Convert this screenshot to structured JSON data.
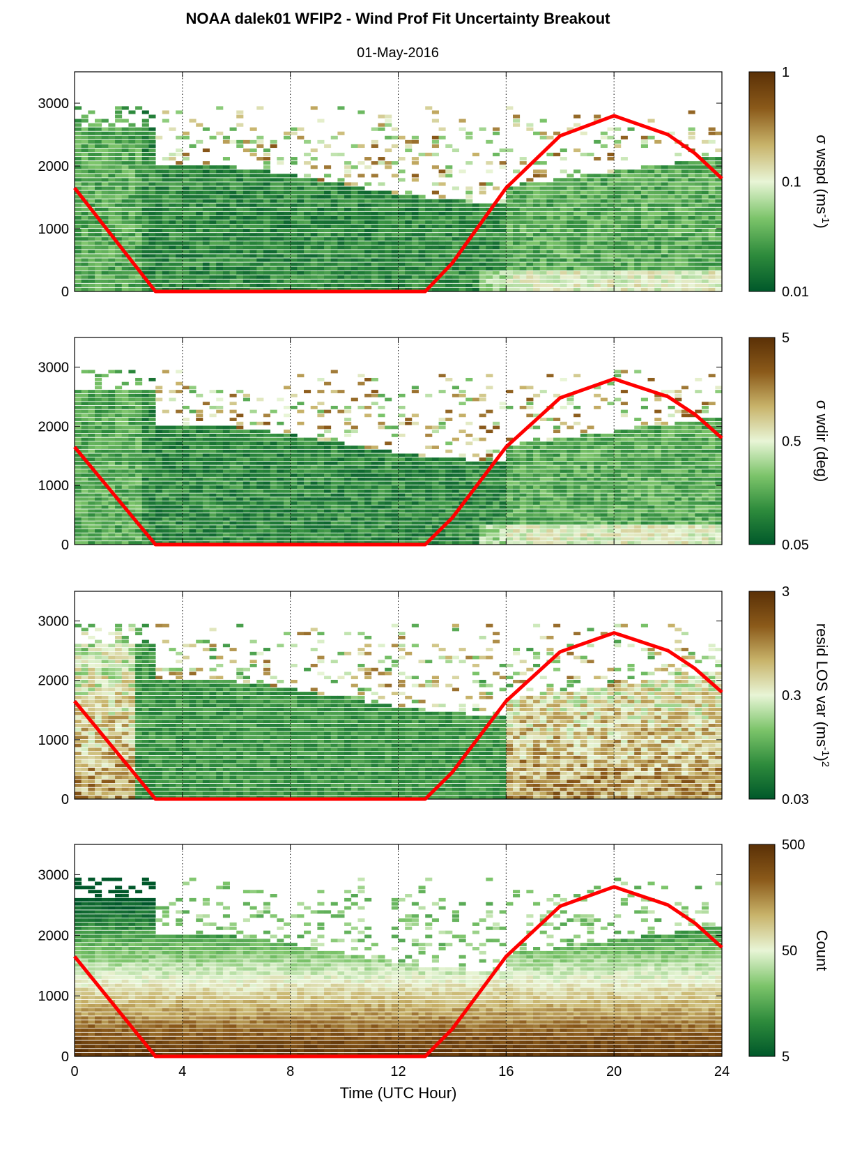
{
  "title": "NOAA dalek01 WFIP2 - Wind Prof Fit Uncertainty Breakout",
  "subtitle": "01-May-2016",
  "colors": {
    "curve": "#ff0000",
    "colormap": [
      "#00582a",
      "#2e8b3c",
      "#7cc46a",
      "#e8f5d6",
      "#c8b36a",
      "#8b5a1a",
      "#5a3006"
    ]
  },
  "chart_data": [
    {
      "type": "heatmap",
      "xlabel": "",
      "ylabel": "",
      "xlim": [
        0,
        24
      ],
      "ylim": [
        0,
        3500
      ],
      "x_ticks": [
        "0",
        "4",
        "8",
        "12",
        "16",
        "20",
        "24"
      ],
      "y_ticks": [
        "0",
        "1000",
        "2000",
        "3000"
      ],
      "colorbar": {
        "label_main": "σ wspd (ms",
        "label_sup": "-1",
        "label_end": ")",
        "ticks": [
          "1",
          "0.1",
          "0.01"
        ],
        "scale": "log"
      },
      "series": [
        {
          "x": [
            0,
            1,
            2,
            3,
            6,
            9,
            12,
            13,
            14,
            16,
            18,
            20,
            22,
            23,
            24
          ],
          "y": [
            1650,
            1100,
            550,
            0,
            0,
            0,
            0,
            0,
            450,
            1650,
            2480,
            2800,
            2500,
            2200,
            1800
          ]
        }
      ]
    },
    {
      "type": "heatmap",
      "xlabel": "",
      "ylabel": "",
      "xlim": [
        0,
        24
      ],
      "ylim": [
        0,
        3500
      ],
      "x_ticks": [
        "0",
        "4",
        "8",
        "12",
        "16",
        "20",
        "24"
      ],
      "y_ticks": [
        "0",
        "1000",
        "2000",
        "3000"
      ],
      "colorbar": {
        "label_main": "σ wdir (deg)",
        "label_sup": "",
        "label_end": "",
        "ticks": [
          "5",
          "0.5",
          "0.05"
        ],
        "scale": "log"
      },
      "series": [
        {
          "x": [
            0,
            1,
            2,
            3,
            6,
            9,
            12,
            13,
            14,
            16,
            18,
            20,
            22,
            23,
            24
          ],
          "y": [
            1650,
            1100,
            550,
            0,
            0,
            0,
            0,
            0,
            450,
            1650,
            2480,
            2800,
            2500,
            2200,
            1800
          ]
        }
      ]
    },
    {
      "type": "heatmap",
      "xlabel": "",
      "ylabel": "",
      "xlim": [
        0,
        24
      ],
      "ylim": [
        0,
        3500
      ],
      "x_ticks": [
        "0",
        "4",
        "8",
        "12",
        "16",
        "20",
        "24"
      ],
      "y_ticks": [
        "0",
        "1000",
        "2000",
        "3000"
      ],
      "colorbar": {
        "label_main": "resid LOS var (ms",
        "label_sup": "-1",
        "label_end": ")",
        "label_sup2": "2",
        "ticks": [
          "3",
          "0.3",
          "0.03"
        ],
        "scale": "log"
      },
      "series": [
        {
          "x": [
            0,
            1,
            2,
            3,
            6,
            9,
            12,
            13,
            14,
            16,
            18,
            20,
            22,
            23,
            24
          ],
          "y": [
            1650,
            1100,
            550,
            0,
            0,
            0,
            0,
            0,
            450,
            1650,
            2480,
            2800,
            2500,
            2200,
            1800
          ]
        }
      ]
    },
    {
      "type": "heatmap",
      "xlabel": "Time (UTC Hour)",
      "ylabel": "",
      "xlim": [
        0,
        24
      ],
      "ylim": [
        0,
        3500
      ],
      "x_ticks": [
        "0",
        "4",
        "8",
        "12",
        "16",
        "20",
        "24"
      ],
      "y_ticks": [
        "0",
        "1000",
        "2000",
        "3000"
      ],
      "colorbar": {
        "label_main": "Count",
        "label_sup": "",
        "label_end": "",
        "ticks": [
          "500",
          "50",
          "5"
        ],
        "scale": "log"
      },
      "series": [
        {
          "x": [
            0,
            1,
            2,
            3,
            6,
            9,
            12,
            13,
            14,
            16,
            18,
            20,
            22,
            23,
            24
          ],
          "y": [
            1650,
            1100,
            550,
            0,
            0,
            0,
            0,
            0,
            450,
            1650,
            2480,
            2800,
            2500,
            2200,
            1800
          ]
        }
      ]
    }
  ]
}
